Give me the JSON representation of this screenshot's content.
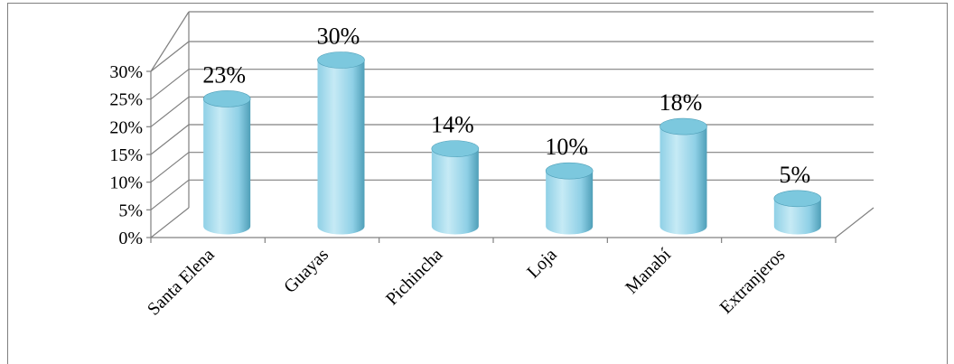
{
  "chart_data": {
    "type": "bar",
    "style": "3d-cylinder",
    "categories": [
      "Santa Elena",
      "Guayas",
      "Pichincha",
      "Loja",
      "Manabí",
      "Extranjeros"
    ],
    "values": [
      23,
      30,
      14,
      10,
      18,
      5
    ],
    "data_labels": [
      "23%",
      "30%",
      "14%",
      "10%",
      "18%",
      "5%"
    ],
    "y_ticks": [
      "0%",
      "5%",
      "10%",
      "15%",
      "20%",
      "25%",
      "30%"
    ],
    "y_tick_values": [
      0,
      5,
      10,
      15,
      20,
      25,
      30
    ],
    "ylim": [
      0,
      30
    ],
    "grid": true,
    "legend": "none",
    "title": "",
    "xlabel": "",
    "ylabel": ""
  },
  "colors": {
    "bar_light": "#c6eaf5",
    "bar_mid": "#8fd0e6",
    "bar_dark": "#4f9fb8",
    "bar_top": "#7cc8de",
    "grid": "#808080",
    "frame": "#7f7f7f"
  }
}
